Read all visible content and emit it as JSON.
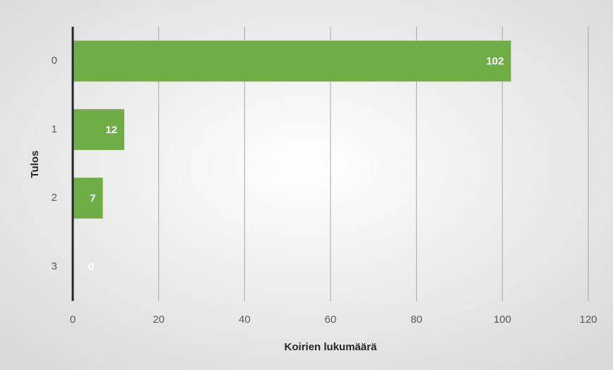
{
  "chart_data": {
    "type": "bar",
    "orientation": "horizontal",
    "categories": [
      "0",
      "1",
      "2",
      "3"
    ],
    "values": [
      102,
      12,
      7,
      0
    ],
    "color": "#70ad47",
    "xlabel": "Koirien lukumäärä",
    "ylabel": "Tulos",
    "xlim": [
      0,
      120
    ],
    "xticks": [
      0,
      20,
      40,
      60,
      80,
      100,
      120
    ],
    "grid": true
  }
}
